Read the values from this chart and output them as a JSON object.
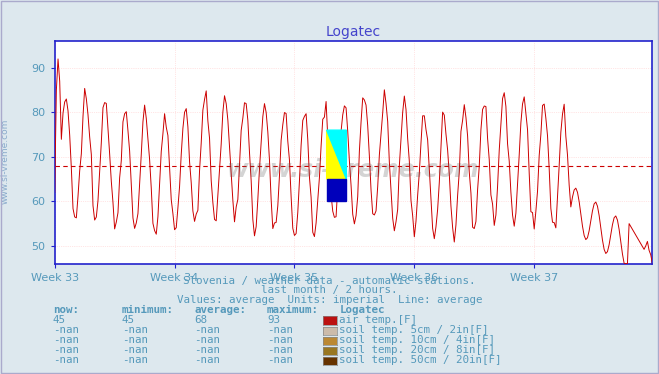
{
  "title": "Logatec",
  "title_color": "#4444cc",
  "bg_color": "#dde8ee",
  "plot_bg_color": "#ffffff",
  "grid_color": "#ffcccc",
  "axis_color": "#2222cc",
  "text_color": "#5599bb",
  "ylabel_text": "www.si-vreme.com",
  "x_labels": [
    "Week 33",
    "Week 34",
    "Week 35",
    "Week 36",
    "Week 37"
  ],
  "ylim": [
    46,
    96
  ],
  "yticks": [
    50,
    60,
    70,
    80,
    90
  ],
  "avg_line_y": 68,
  "line_color": "#cc0000",
  "subtitle1": "Slovenia / weather data - automatic stations.",
  "subtitle2": "last month / 2 hours.",
  "subtitle3": "Values: average  Units: imperial  Line: average",
  "table_headers": [
    "now:",
    "minimum:",
    "average:",
    "maximum:",
    "Logatec"
  ],
  "table_row1_vals": [
    "45",
    "45",
    "68",
    "93"
  ],
  "table_row1_label": "air temp.[F]",
  "table_row1_color": "#bb1111",
  "table_row2_label": "soil temp. 5cm / 2in[F]",
  "table_row2_color": "#ccbbaa",
  "table_row3_label": "soil temp. 10cm / 4in[F]",
  "table_row3_color": "#bb8833",
  "table_row4_label": "soil temp. 20cm / 8in[F]",
  "table_row4_color": "#997722",
  "table_row5_label": "soil temp. 50cm / 20in[F]",
  "table_row5_color": "#663300",
  "nan_val": "-nan",
  "watermark": "www.si-vreme.com"
}
